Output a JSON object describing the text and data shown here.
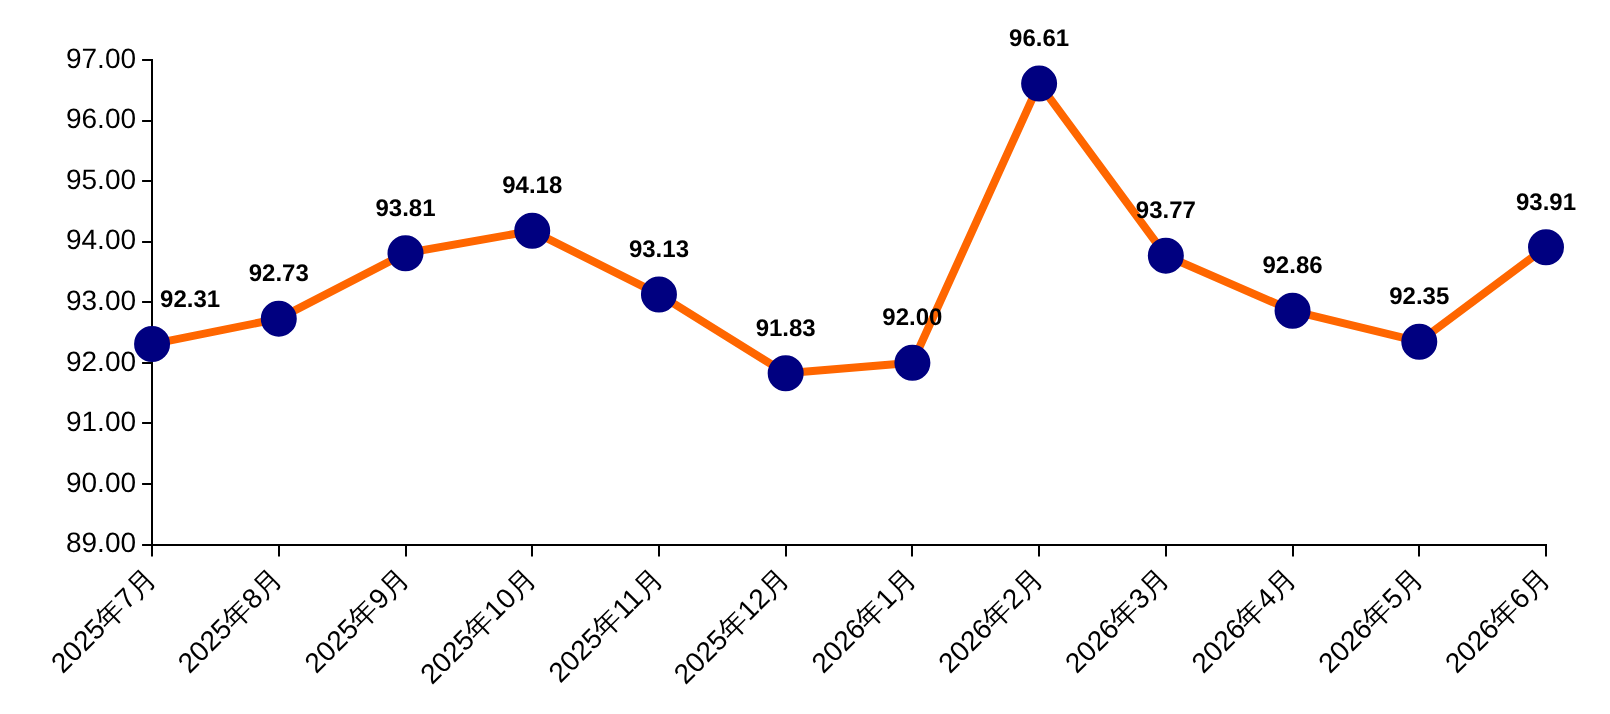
{
  "chart_data": {
    "type": "line",
    "categories": [
      "2025年7月",
      "2025年8月",
      "2025年9月",
      "2025年10月",
      "2025年11月",
      "2025年12月",
      "2026年1月",
      "2026年2月",
      "2026年3月",
      "2026年4月",
      "2026年5月",
      "2026年6月"
    ],
    "series": [
      {
        "color": "#ff6600",
        "colors": [
          "#000080",
          "#000080",
          "#000080",
          "#000080",
          "#000080",
          "#000080",
          "#000080",
          "#000080",
          "#000080",
          "#000080",
          "#000080",
          "#000080"
        ],
        "values": [
          92.31,
          92.73,
          93.81,
          94.18,
          93.13,
          91.83,
          92.0,
          96.61,
          93.77,
          92.86,
          92.35,
          93.91
        ],
        "value_labels": [
          "92.31",
          "92.73",
          "93.81",
          "94.18",
          "93.13",
          "91.83",
          "92.00",
          "96.61",
          "93.77",
          "92.86",
          "92.35",
          "93.91"
        ]
      }
    ],
    "ylim": [
      89,
      97
    ],
    "yticks": [
      {
        "value": 89,
        "label": "89.00"
      },
      {
        "value": 90,
        "label": "90.00"
      },
      {
        "value": 91,
        "label": "91.00"
      },
      {
        "value": 92,
        "label": "92.00"
      },
      {
        "value": 93,
        "label": "93.00"
      },
      {
        "value": 94,
        "label": "94.00"
      },
      {
        "value": 95,
        "label": "95.00"
      },
      {
        "value": 96,
        "label": "96.00"
      },
      {
        "value": 97,
        "label": "97.00"
      }
    ],
    "grid": false,
    "legend": false,
    "marker": "circle",
    "line_style": "solid"
  }
}
